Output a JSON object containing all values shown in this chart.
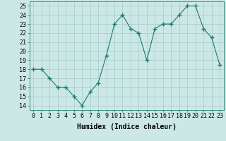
{
  "x": [
    0,
    1,
    2,
    3,
    4,
    5,
    6,
    7,
    8,
    9,
    10,
    11,
    12,
    13,
    14,
    15,
    16,
    17,
    18,
    19,
    20,
    21,
    22,
    23
  ],
  "y": [
    18,
    18,
    17,
    16,
    16,
    15,
    14,
    15.5,
    16.5,
    19.5,
    23,
    24,
    22.5,
    22,
    19,
    22.5,
    23,
    23,
    24,
    25,
    25,
    22.5,
    21.5,
    18.5
  ],
  "line_color": "#1a7a6e",
  "marker": "+",
  "marker_size": 4,
  "bg_color": "#cce8e6",
  "grid_color": "#aacfcc",
  "xlabel": "Humidex (Indice chaleur)",
  "xlim": [
    -0.5,
    23.5
  ],
  "ylim": [
    13.5,
    25.5
  ],
  "xtick_labels": [
    "0",
    "1",
    "2",
    "3",
    "4",
    "5",
    "6",
    "7",
    "8",
    "9",
    "10",
    "11",
    "12",
    "13",
    "14",
    "15",
    "16",
    "17",
    "18",
    "19",
    "20",
    "21",
    "22",
    "23"
  ],
  "ytick_values": [
    14,
    15,
    16,
    17,
    18,
    19,
    20,
    21,
    22,
    23,
    24,
    25
  ],
  "xlabel_fontsize": 7,
  "tick_fontsize": 6
}
